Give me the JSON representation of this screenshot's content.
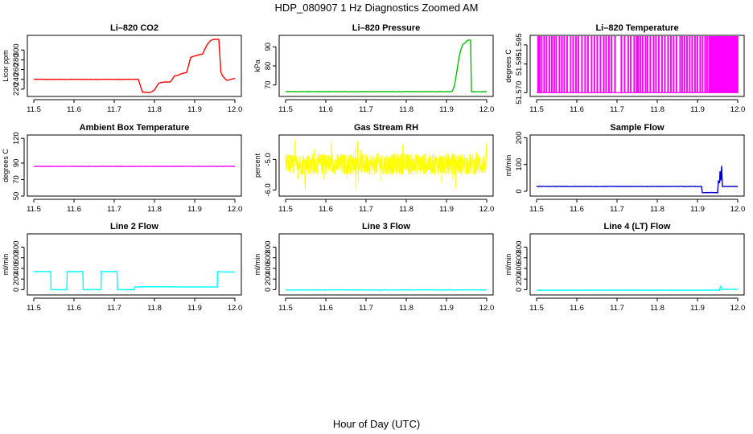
{
  "figure": {
    "title": "HDP_080907  1 Hz Diagnostics Zoomed AM",
    "xlabel": "Hour of Day (UTC)"
  },
  "chart_data": [
    {
      "type": "line",
      "title": "Li–820 CO2",
      "ylabel": "Licor ppm",
      "color": "#ff0000",
      "xlim": [
        11.5,
        12.0
      ],
      "ylim": [
        205,
        330
      ],
      "xticks": [
        "11.5",
        "11.6",
        "11.7",
        "11.8",
        "11.9",
        "12.0"
      ],
      "yticks": [
        220,
        240,
        260,
        280,
        300
      ],
      "series": [
        {
          "name": "CO2",
          "x": [
            11.5,
            11.76,
            11.77,
            11.79,
            11.8,
            11.81,
            11.82,
            11.84,
            11.85,
            11.86,
            11.87,
            11.88,
            11.89,
            11.9,
            11.91,
            11.92,
            11.93,
            11.94,
            11.95,
            11.96,
            11.965,
            11.97,
            11.98,
            11.99,
            12.0
          ],
          "y": [
            240,
            240,
            214,
            213,
            218,
            232,
            234,
            235,
            247,
            249,
            252,
            254,
            285,
            288,
            290,
            292,
            310,
            320,
            322,
            322,
            255,
            246,
            238,
            240,
            242
          ]
        }
      ]
    },
    {
      "type": "line",
      "title": "Li–820 Pressure",
      "ylabel": "kPa",
      "color": "#00c000",
      "xlim": [
        11.5,
        12.0
      ],
      "ylim": [
        64,
        96
      ],
      "xticks": [
        "11.5",
        "11.6",
        "11.7",
        "11.8",
        "11.9",
        "12.0"
      ],
      "yticks": [
        70,
        80,
        90
      ],
      "series": [
        {
          "name": "Pressure",
          "x": [
            11.5,
            11.91,
            11.915,
            11.92,
            11.925,
            11.93,
            11.935,
            11.94,
            11.95,
            11.955,
            11.96,
            11.962,
            12.0
          ],
          "y": [
            66.5,
            66.5,
            67,
            70,
            76,
            83,
            88,
            91,
            93,
            93.5,
            93.5,
            66.5,
            66.5
          ]
        }
      ]
    },
    {
      "type": "line",
      "title": "Li–820 Temperature",
      "ylabel": "degrees C",
      "color": "#ff00ff",
      "xlim": [
        11.5,
        12.0
      ],
      "ylim": [
        51.568,
        51.6
      ],
      "xticks": [
        "11.5",
        "11.6",
        "11.7",
        "11.8",
        "11.9",
        "12.0"
      ],
      "yticks": [
        "51.570",
        "51.585",
        "51.595"
      ],
      "series": [
        {
          "name": "Temperature",
          "baseline": 51.57,
          "spike": 51.6,
          "color": "#ff00ff",
          "spike_x": [
            11.503,
            11.507,
            11.512,
            11.518,
            11.524,
            11.531,
            11.537,
            11.543,
            11.548,
            11.556,
            11.562,
            11.568,
            11.575,
            11.584,
            11.59,
            11.597,
            11.603,
            11.612,
            11.62,
            11.627,
            11.636,
            11.643,
            11.65,
            11.658,
            11.666,
            11.672,
            11.679,
            11.685,
            11.694,
            11.71,
            11.718,
            11.727,
            11.733,
            11.742,
            11.748,
            11.752,
            11.757,
            11.763,
            11.77,
            11.775,
            11.782,
            11.79,
            11.796,
            11.803,
            11.811,
            11.818,
            11.826,
            11.833,
            11.84,
            11.847,
            11.856,
            11.861,
            11.867,
            11.873,
            11.88,
            11.886,
            11.893,
            11.899,
            11.906,
            11.912,
            11.918,
            11.923,
            11.928,
            11.932,
            11.936,
            11.94,
            11.944,
            11.948,
            11.952,
            11.956,
            11.96,
            11.964,
            11.968,
            11.972,
            11.976,
            11.98,
            11.984,
            11.988,
            11.992,
            11.996,
            11.999
          ]
        }
      ]
    },
    {
      "type": "line",
      "title": "Ambient Box Temperature",
      "ylabel": "degrees C",
      "color": "#ff00ff",
      "xlim": [
        11.5,
        12.0
      ],
      "ylim": [
        50,
        124
      ],
      "xticks": [
        "11.5",
        "11.6",
        "11.7",
        "11.8",
        "11.9",
        "12.0"
      ],
      "yticks": [
        50,
        70,
        90,
        120
      ],
      "series": [
        {
          "name": "Ambient",
          "x": [
            11.5,
            12.0
          ],
          "y": [
            86,
            86
          ]
        }
      ]
    },
    {
      "type": "line",
      "title": "Gas Stream RH",
      "ylabel": "percent",
      "color": "#ffff00",
      "xlim": [
        11.5,
        12.0
      ],
      "ylim": [
        -6.2,
        -4.2
      ],
      "xticks": [
        "11.5",
        "11.6",
        "11.7",
        "11.8",
        "11.9",
        "12.0"
      ],
      "yticks": [
        "-6.0",
        "-5.0"
      ],
      "series": [
        {
          "name": "RH",
          "mean": -5.15,
          "amplitude": 0.35,
          "min": -6.1,
          "max": -4.35
        }
      ]
    },
    {
      "type": "line",
      "title": "Sample Flow",
      "ylabel": "ml/min",
      "color": "#0000cd",
      "xlim": [
        11.5,
        12.0
      ],
      "ylim": [
        -18,
        210
      ],
      "xticks": [
        "11.5",
        "11.6",
        "11.7",
        "11.8",
        "11.9",
        "12.0"
      ],
      "yticks": [
        0,
        100,
        200
      ],
      "series": [
        {
          "name": "Sample",
          "x": [
            11.5,
            11.91,
            11.912,
            11.95,
            11.952,
            11.955,
            11.956,
            11.958,
            11.96,
            11.962,
            11.965,
            12.0
          ],
          "y": [
            18,
            18,
            -5,
            -5,
            40,
            30,
            75,
            40,
            95,
            18,
            18,
            18
          ]
        }
      ]
    },
    {
      "type": "line",
      "title": "Line 2 Flow",
      "ylabel": "ml/min",
      "color": "#00ffff",
      "xlim": [
        11.5,
        12.0
      ],
      "ylim": [
        -100,
        1050
      ],
      "xticks": [
        "11.5",
        "11.6",
        "11.7",
        "11.8",
        "11.9",
        "12.0"
      ],
      "yticks": [
        0,
        200,
        400,
        600,
        800
      ],
      "series": [
        {
          "name": "Line2",
          "x": [
            11.5,
            11.542,
            11.543,
            11.582,
            11.583,
            11.622,
            11.623,
            11.667,
            11.668,
            11.707,
            11.708,
            11.75,
            11.751,
            11.8,
            11.9,
            11.95,
            11.956,
            11.957,
            12.0
          ],
          "y": [
            340,
            340,
            0,
            0,
            340,
            340,
            0,
            0,
            340,
            340,
            0,
            0,
            50,
            55,
            50,
            50,
            50,
            340,
            330
          ]
        }
      ]
    },
    {
      "type": "line",
      "title": "Line 3 Flow",
      "ylabel": "ml/min",
      "color": "#00ffff",
      "xlim": [
        11.5,
        12.0
      ],
      "ylim": [
        -100,
        1050
      ],
      "xticks": [
        "11.5",
        "11.6",
        "11.7",
        "11.8",
        "11.9",
        "12.0"
      ],
      "yticks": [
        0,
        200,
        400,
        600,
        800
      ],
      "series": [
        {
          "name": "Line3",
          "x": [
            11.5,
            12.0
          ],
          "y": [
            -5,
            -5
          ]
        }
      ]
    },
    {
      "type": "line",
      "title": "Line 4 (LT) Flow",
      "ylabel": "ml/min",
      "color": "#00ffff",
      "xlim": [
        11.5,
        12.0
      ],
      "ylim": [
        -100,
        1050
      ],
      "xticks": [
        "11.5",
        "11.6",
        "11.7",
        "11.8",
        "11.9",
        "12.0"
      ],
      "yticks": [
        0,
        200,
        400,
        600,
        800
      ],
      "series": [
        {
          "name": "Line4",
          "x": [
            11.5,
            11.955,
            11.956,
            11.958,
            11.96,
            11.961,
            12.0
          ],
          "y": [
            -10,
            -10,
            30,
            60,
            40,
            5,
            5
          ]
        }
      ]
    }
  ]
}
